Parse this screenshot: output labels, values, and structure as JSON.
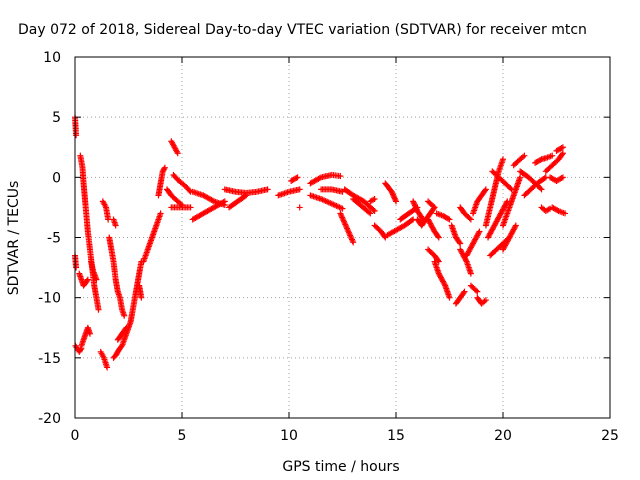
{
  "chart_data": {
    "type": "scatter",
    "title": "Day 072 of 2018, Sidereal Day-to-day VTEC variation (SDTVAR) for receiver mtcn",
    "xlabel": "GPS time / hours",
    "ylabel": "SDTVAR / TECUs",
    "xlim": [
      0,
      25
    ],
    "ylim": [
      -20,
      10
    ],
    "xticks": [
      0,
      5,
      10,
      15,
      20,
      25
    ],
    "yticks": [
      -20,
      -15,
      -10,
      -5,
      0,
      5,
      10
    ],
    "grid": true,
    "marker": "+",
    "series": [
      {
        "name": "SDTVAR",
        "color": "#ff0000",
        "tracks": [
          [
            [
              0.0,
              5.0
            ],
            [
              0.05,
              3.5
            ]
          ],
          [
            [
              0.0,
              -6.5
            ],
            [
              0.05,
              -7.5
            ]
          ],
          [
            [
              0.02,
              -14.0
            ],
            [
              0.2,
              -14.5
            ],
            [
              0.3,
              -14.2
            ]
          ],
          [
            [
              0.25,
              1.8
            ],
            [
              0.35,
              0.8
            ],
            [
              0.4,
              -0.5
            ],
            [
              0.45,
              -1.5
            ],
            [
              0.5,
              -2.5
            ],
            [
              0.55,
              -3.5
            ],
            [
              0.6,
              -4.5
            ],
            [
              0.7,
              -6.0
            ],
            [
              0.8,
              -7.5
            ],
            [
              0.9,
              -9.0
            ],
            [
              1.0,
              -10.0
            ],
            [
              1.1,
              -11.0
            ]
          ],
          [
            [
              0.2,
              -8.0
            ],
            [
              0.4,
              -9.0
            ],
            [
              0.6,
              -8.5
            ]
          ],
          [
            [
              0.3,
              -14.0
            ],
            [
              0.4,
              -13.5
            ],
            [
              0.5,
              -13.0
            ],
            [
              0.6,
              -12.5
            ],
            [
              0.7,
              -13.0
            ]
          ],
          [
            [
              0.75,
              -7.0
            ],
            [
              0.85,
              -7.8
            ],
            [
              1.0,
              -8.5
            ]
          ],
          [
            [
              1.2,
              -14.5
            ],
            [
              1.35,
              -15.0
            ],
            [
              1.5,
              -15.8
            ]
          ],
          [
            [
              1.3,
              -2.0
            ],
            [
              1.45,
              -2.5
            ],
            [
              1.55,
              -3.5
            ]
          ],
          [
            [
              1.6,
              -5.0
            ],
            [
              1.7,
              -6.0
            ],
            [
              1.8,
              -7.0
            ],
            [
              1.9,
              -8.5
            ],
            [
              2.0,
              -9.5
            ],
            [
              2.1,
              -10.0
            ],
            [
              2.2,
              -11.0
            ],
            [
              2.3,
              -11.5
            ]
          ],
          [
            [
              1.8,
              -3.5
            ],
            [
              1.9,
              -4.0
            ]
          ],
          [
            [
              1.8,
              -15.0
            ],
            [
              1.9,
              -14.8
            ],
            [
              2.0,
              -14.5
            ],
            [
              2.1,
              -14.2
            ],
            [
              2.2,
              -14.0
            ],
            [
              2.3,
              -13.5
            ],
            [
              2.4,
              -13.0
            ],
            [
              2.5,
              -12.5
            ],
            [
              2.6,
              -12.0
            ],
            [
              2.7,
              -11.0
            ],
            [
              2.8,
              -10.0
            ],
            [
              2.9,
              -9.0
            ],
            [
              3.0,
              -8.0
            ],
            [
              3.1,
              -7.0
            ]
          ],
          [
            [
              2.0,
              -13.5
            ],
            [
              2.2,
              -13.0
            ],
            [
              2.4,
              -12.5
            ]
          ],
          [
            [
              3.0,
              -9.0
            ],
            [
              3.1,
              -10.0
            ]
          ],
          [
            [
              3.2,
              -7.0
            ],
            [
              3.3,
              -6.5
            ],
            [
              3.4,
              -6.0
            ],
            [
              3.5,
              -5.5
            ],
            [
              3.6,
              -5.0
            ],
            [
              3.7,
              -4.5
            ],
            [
              3.8,
              -4.0
            ],
            [
              3.9,
              -3.5
            ],
            [
              4.0,
              -3.0
            ]
          ],
          [
            [
              3.9,
              -1.5
            ],
            [
              4.0,
              -0.5
            ],
            [
              4.1,
              0.5
            ],
            [
              4.2,
              0.8
            ]
          ],
          [
            [
              4.3,
              -1.0
            ],
            [
              4.5,
              -1.5
            ],
            [
              4.8,
              -2.0
            ],
            [
              5.0,
              -2.3
            ]
          ],
          [
            [
              4.5,
              3.0
            ],
            [
              4.65,
              2.5
            ],
            [
              4.8,
              2.0
            ]
          ],
          [
            [
              4.5,
              -2.5
            ],
            [
              4.8,
              -2.5
            ],
            [
              5.1,
              -2.5
            ],
            [
              5.4,
              -2.5
            ]
          ],
          [
            [
              4.6,
              0.2
            ],
            [
              4.8,
              -0.2
            ],
            [
              5.0,
              -0.5
            ],
            [
              5.2,
              -0.8
            ],
            [
              5.4,
              -1.2
            ]
          ],
          [
            [
              5.5,
              -1.2
            ],
            [
              6.0,
              -1.5
            ],
            [
              6.5,
              -2.0
            ],
            [
              7.0,
              -2.3
            ]
          ],
          [
            [
              5.5,
              -3.5
            ],
            [
              6.0,
              -3.0
            ],
            [
              6.5,
              -2.5
            ],
            [
              7.0,
              -2.0
            ]
          ],
          [
            [
              7.0,
              -1.0
            ],
            [
              7.5,
              -1.2
            ],
            [
              8.0,
              -1.3
            ],
            [
              8.5,
              -1.2
            ],
            [
              9.0,
              -1.0
            ]
          ],
          [
            [
              7.2,
              -2.5
            ],
            [
              7.6,
              -2.0
            ],
            [
              8.0,
              -1.5
            ]
          ],
          [
            [
              9.5,
              -1.5
            ],
            [
              10.0,
              -1.2
            ],
            [
              10.5,
              -1.0
            ]
          ],
          [
            [
              10.1,
              -0.3
            ],
            [
              10.4,
              0.0
            ]
          ],
          [
            [
              10.5,
              -2.5
            ]
          ],
          [
            [
              11.0,
              -0.5
            ],
            [
              11.5,
              0.0
            ],
            [
              12.0,
              0.2
            ],
            [
              12.4,
              0.1
            ]
          ],
          [
            [
              11.0,
              -1.5
            ],
            [
              11.5,
              -1.8
            ],
            [
              12.0,
              -2.2
            ],
            [
              12.5,
              -2.6
            ]
          ],
          [
            [
              11.5,
              -1.0
            ],
            [
              12.0,
              -1.0
            ],
            [
              12.5,
              -1.2
            ]
          ],
          [
            [
              12.4,
              -3.0
            ],
            [
              12.6,
              -3.8
            ],
            [
              12.8,
              -4.6
            ],
            [
              13.0,
              -5.4
            ]
          ],
          [
            [
              12.6,
              -1.0
            ],
            [
              13.0,
              -1.5
            ],
            [
              13.5,
              -2.0
            ],
            [
              14.0,
              -2.8
            ]
          ],
          [
            [
              13.0,
              -1.8
            ],
            [
              13.4,
              -2.4
            ],
            [
              13.8,
              -3.0
            ]
          ],
          [
            [
              13.8,
              -2.0
            ],
            [
              14.0,
              -1.8
            ]
          ],
          [
            [
              14.0,
              -4.0
            ],
            [
              14.3,
              -4.5
            ],
            [
              14.5,
              -5.0
            ]
          ],
          [
            [
              14.5,
              -0.5
            ],
            [
              14.8,
              -1.2
            ],
            [
              15.0,
              -2.0
            ]
          ],
          [
            [
              14.6,
              -4.8
            ],
            [
              15.0,
              -4.4
            ],
            [
              15.4,
              -4.0
            ],
            [
              15.8,
              -3.5
            ]
          ],
          [
            [
              15.2,
              -3.5
            ],
            [
              15.6,
              -3.0
            ],
            [
              16.0,
              -2.5
            ]
          ],
          [
            [
              15.8,
              -2.0
            ],
            [
              16.0,
              -2.8
            ],
            [
              16.3,
              -3.6
            ]
          ],
          [
            [
              16.0,
              -3.5
            ],
            [
              16.2,
              -4.0
            ],
            [
              16.4,
              -3.5
            ],
            [
              16.6,
              -3.0
            ],
            [
              16.8,
              -2.5
            ]
          ],
          [
            [
              16.5,
              -2.0
            ],
            [
              16.8,
              -2.5
            ]
          ],
          [
            [
              16.5,
              -3.5
            ],
            [
              16.8,
              -4.5
            ],
            [
              17.0,
              -5.0
            ]
          ],
          [
            [
              16.9,
              -3.0
            ],
            [
              17.2,
              -3.2
            ],
            [
              17.5,
              -3.5
            ]
          ],
          [
            [
              16.5,
              -6.0
            ],
            [
              16.8,
              -6.5
            ],
            [
              17.0,
              -7.0
            ]
          ],
          [
            [
              16.8,
              -7.0
            ],
            [
              17.0,
              -8.0
            ],
            [
              17.3,
              -9.0
            ],
            [
              17.5,
              -10.0
            ]
          ],
          [
            [
              17.6,
              -4.0
            ],
            [
              17.8,
              -5.0
            ],
            [
              18.0,
              -5.5
            ]
          ],
          [
            [
              17.8,
              -10.5
            ],
            [
              18.0,
              -10.0
            ],
            [
              18.2,
              -9.5
            ]
          ],
          [
            [
              18.0,
              -2.5
            ],
            [
              18.2,
              -3.0
            ],
            [
              18.5,
              -3.5
            ]
          ],
          [
            [
              18.0,
              -6.0
            ],
            [
              18.3,
              -7.0
            ],
            [
              18.5,
              -8.0
            ]
          ],
          [
            [
              18.3,
              -6.5
            ],
            [
              18.6,
              -5.5
            ],
            [
              18.9,
              -4.5
            ]
          ],
          [
            [
              18.5,
              -9.0
            ],
            [
              18.8,
              -9.5
            ]
          ],
          [
            [
              18.8,
              -10.0
            ],
            [
              19.0,
              -10.5
            ],
            [
              19.2,
              -10.2
            ]
          ],
          [
            [
              18.6,
              -3.0
            ],
            [
              18.8,
              -2.0
            ],
            [
              19.0,
              -1.5
            ],
            [
              19.2,
              -1.0
            ]
          ],
          [
            [
              19.2,
              -4.0
            ],
            [
              19.4,
              -2.5
            ],
            [
              19.6,
              -1.0
            ],
            [
              19.8,
              0.5
            ],
            [
              20.0,
              1.5
            ]
          ],
          [
            [
              19.3,
              -5.0
            ],
            [
              19.6,
              -4.0
            ],
            [
              19.9,
              -3.0
            ],
            [
              20.2,
              -2.0
            ]
          ],
          [
            [
              19.4,
              -6.5
            ],
            [
              19.7,
              -6.0
            ],
            [
              20.0,
              -5.5
            ],
            [
              20.3,
              -5.0
            ]
          ],
          [
            [
              19.5,
              0.5
            ],
            [
              19.8,
              0.0
            ],
            [
              20.1,
              -0.5
            ],
            [
              20.4,
              -1.0
            ]
          ],
          [
            [
              20.0,
              -4.0
            ],
            [
              20.2,
              -3.0
            ],
            [
              20.4,
              -2.0
            ],
            [
              20.6,
              -1.0
            ],
            [
              20.8,
              0.0
            ]
          ],
          [
            [
              20.0,
              -6.0
            ],
            [
              20.3,
              -5.0
            ],
            [
              20.6,
              -4.0
            ]
          ],
          [
            [
              20.5,
              1.0
            ],
            [
              20.8,
              1.5
            ],
            [
              21.0,
              1.8
            ]
          ],
          [
            [
              20.8,
              0.5
            ],
            [
              21.2,
              0.0
            ],
            [
              21.5,
              -0.5
            ],
            [
              21.8,
              -1.0
            ]
          ],
          [
            [
              21.0,
              -1.5
            ],
            [
              21.3,
              -1.0
            ],
            [
              21.6,
              -0.5
            ],
            [
              22.0,
              0.0
            ]
          ],
          [
            [
              21.5,
              1.2
            ],
            [
              21.8,
              1.5
            ],
            [
              22.0,
              1.6
            ],
            [
              22.3,
              1.8
            ]
          ],
          [
            [
              21.8,
              -2.5
            ],
            [
              22.0,
              -2.8
            ],
            [
              22.2,
              -2.6
            ]
          ],
          [
            [
              22.0,
              0.5
            ],
            [
              22.3,
              1.0
            ],
            [
              22.6,
              1.5
            ],
            [
              22.8,
              2.0
            ]
          ],
          [
            [
              22.2,
              0.0
            ],
            [
              22.5,
              -0.3
            ],
            [
              22.8,
              0.0
            ]
          ],
          [
            [
              22.3,
              -2.5
            ],
            [
              22.6,
              -2.8
            ],
            [
              22.9,
              -3.0
            ]
          ],
          [
            [
              22.5,
              2.2
            ],
            [
              22.8,
              2.5
            ]
          ]
        ]
      }
    ]
  }
}
